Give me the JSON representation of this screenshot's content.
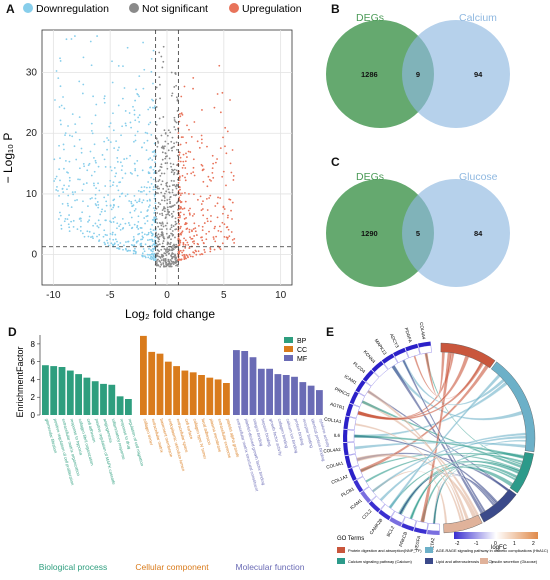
{
  "panels": {
    "A": "A",
    "B": "B",
    "C": "C",
    "D": "D",
    "E": "E"
  },
  "colors": {
    "down": "#87ceeb",
    "ns": "#8a8a8a",
    "up": "#e8735a",
    "venn_left": "#4a9a56",
    "venn_right": "#8fb8e0",
    "bp": "#2e9e7e",
    "cc": "#d97b1c",
    "mf": "#6a6bb5"
  },
  "volcano": {
    "legend": {
      "down": "Downregulation",
      "ns": "Not significant",
      "up": "Upregulation"
    },
    "xlabel": "Log₂ fold change",
    "ylabel": "− Log₁₀ P",
    "xticks": [
      -10,
      -5,
      0,
      5,
      10
    ],
    "yticks": [
      0,
      10,
      20,
      30
    ],
    "xlim": [
      -11,
      11
    ],
    "ylim": [
      -5,
      37
    ],
    "log2fc_cutoff": [
      -1,
      1
    ],
    "p_cutoff_line": 1.3
  },
  "venn_b": {
    "left_label": "DEGs",
    "right_label": "Calcium",
    "left_only": "1286",
    "overlap": "9",
    "right_only": "94"
  },
  "venn_c": {
    "left_label": "DEGs",
    "right_label": "Glucose",
    "left_only": "1290",
    "overlap": "5",
    "right_only": "84"
  },
  "chart_data": {
    "type": "bar",
    "ylabel": "EnrichmentFactor",
    "ylim": [
      0,
      9
    ],
    "yticks": [
      0,
      2,
      4,
      6,
      8
    ],
    "legend": [
      "BP",
      "CC",
      "MF"
    ],
    "groups": [
      "Biological process",
      "Cellular component",
      "Molecular function"
    ],
    "series": [
      {
        "name": "BP",
        "values": [
          5.6,
          5.5,
          5.4,
          5.0,
          4.6,
          4.2,
          3.8,
          3.5,
          3.4,
          2.1,
          1.8
        ],
        "categories": [
          "glomerular filtration",
          "positive regulation of cell proliferation",
          "extracellular matrix organization",
          "response to hypoxia",
          "collagen fibril organization",
          "cell adhesion",
          "positive regulation of MAPK cascade",
          "angiogenesis",
          "inflammatory response",
          "response to drug",
          "regulation of cell migration"
        ]
      },
      {
        "name": "CC",
        "values": [
          8.9,
          7.1,
          6.9,
          6.0,
          5.5,
          5.0,
          4.8,
          4.5,
          4.2,
          4.0,
          3.6
        ],
        "categories": [
          "collagen trimer",
          "extracellular matrix",
          "basement membrane",
          "endoplasmic reticulum lumen",
          "extracellular space",
          "cell surface",
          "collagen type IV trimer",
          "focal adhesion",
          "plasma membrane",
          "extracellular exosome",
          "platelet alpha granule"
        ]
      },
      {
        "name": "MF",
        "values": [
          7.3,
          7.2,
          6.5,
          5.2,
          5.2,
          4.6,
          4.5,
          4.3,
          3.7,
          3.3,
          2.8
        ],
        "categories": [
          "extracellular matrix structural constituent",
          "platelet-derived growth factor binding",
          "integrin binding",
          "heparin binding",
          "growth factor activity",
          "collagen binding",
          "calcium ion binding",
          "protein binding",
          "receptor binding",
          "identical protein binding",
          "cytokine activity"
        ]
      }
    ]
  },
  "chord": {
    "genes": [
      "COL4A4",
      "PDGFA",
      "ADCY3",
      "MAPK13",
      "KCNN4",
      "PLCD4",
      "ICAM1",
      "PRKCG",
      "AGTR1",
      "COL1A1",
      "IL6",
      "COL4A2",
      "COL4A1",
      "COL1A2",
      "PLCB1",
      "ICAM1",
      "CCL2",
      "CAMK2B",
      "BCL2",
      "PRKCB",
      "VEGFA",
      "ACTA2"
    ],
    "logfc_title": "logFC",
    "logfc_ticks": [
      "-2",
      "-1",
      "0",
      "1",
      "2"
    ],
    "go_title": "GO Terms",
    "terms": [
      {
        "label": "Protein digestion and absorption(NNP_TF)",
        "color": "#c9563c"
      },
      {
        "label": "AGE-RAGE signaling pathway in diabetic complications (HbA1C)",
        "color": "#6cb0c8"
      },
      {
        "label": "Calcium signaling pathway (Calcium)",
        "color": "#2c9a8a"
      },
      {
        "label": "Lipid and atherosclerosis (LDLC)",
        "color": "#3b4a8a"
      },
      {
        "label": "Insulin secretion (Glucose)",
        "color": "#e0b29a"
      }
    ]
  }
}
